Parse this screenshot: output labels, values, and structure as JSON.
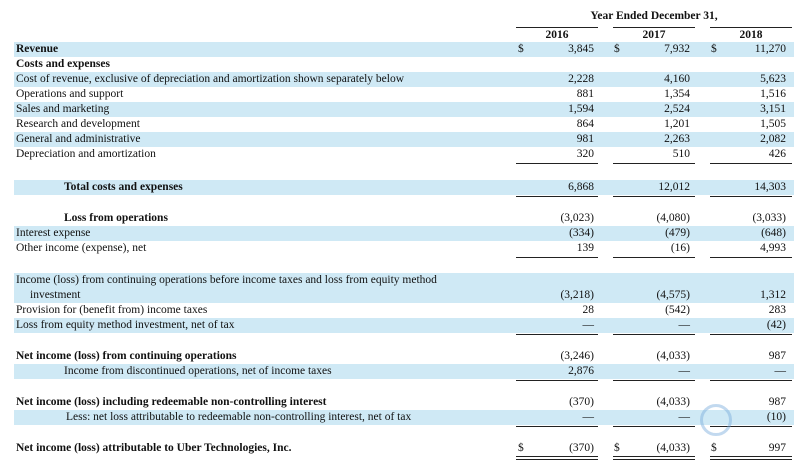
{
  "header": {
    "title": "Year Ended December 31,",
    "years": [
      "2016",
      "2017",
      "2018"
    ]
  },
  "currency_symbol": "$",
  "rows": {
    "revenue": {
      "label": "Revenue",
      "v": [
        "3,845",
        "7,932",
        "11,270"
      ]
    },
    "costs_header": {
      "label": "Costs and expenses"
    },
    "cost_of_revenue": {
      "label": "Cost of revenue, exclusive of depreciation and amortization shown separately below",
      "v": [
        "2,228",
        "4,160",
        "5,623"
      ]
    },
    "operations": {
      "label": "Operations and support",
      "v": [
        "881",
        "1,354",
        "1,516"
      ]
    },
    "sales": {
      "label": "Sales and marketing",
      "v": [
        "1,594",
        "2,524",
        "3,151"
      ]
    },
    "research": {
      "label": "Research and development",
      "v": [
        "864",
        "1,201",
        "1,505"
      ]
    },
    "general": {
      "label": "General and administrative",
      "v": [
        "981",
        "2,263",
        "2,082"
      ]
    },
    "depreciation": {
      "label": "Depreciation and amortization",
      "v": [
        "320",
        "510",
        "426"
      ]
    },
    "total_costs": {
      "label": "Total costs and expenses",
      "v": [
        "6,868",
        "12,012",
        "14,303"
      ]
    },
    "loss_ops": {
      "label": "Loss from operations",
      "v": [
        "(3,023)",
        "(4,080)",
        "(3,033)"
      ]
    },
    "interest": {
      "label": "Interest expense",
      "v": [
        "(334)",
        "(479)",
        "(648)"
      ]
    },
    "other_income": {
      "label": "Other income (expense), net",
      "v": [
        "139",
        "(16)",
        "4,993"
      ]
    },
    "income_before_tax": {
      "label_line1": "Income (loss) from continuing operations before income taxes and loss from equity method",
      "label_line2": "investment",
      "v": [
        "(3,218)",
        "(4,575)",
        "1,312"
      ]
    },
    "provision": {
      "label": "Provision for (benefit from) income taxes",
      "v": [
        "28",
        "(542)",
        "283"
      ]
    },
    "equity_loss": {
      "label": "Loss from equity method investment, net of tax",
      "v": [
        "—",
        "—",
        "(42)"
      ]
    },
    "net_cont": {
      "label": "Net income (loss) from continuing operations",
      "v": [
        "(3,246)",
        "(4,033)",
        "987"
      ]
    },
    "discontinued": {
      "label": "Income from discontinued operations, net of income taxes",
      "v": [
        "2,876",
        "—",
        "—"
      ]
    },
    "net_incl_nci": {
      "label": "Net income (loss) including redeemable non-controlling interest",
      "v": [
        "(370)",
        "(4,033)",
        "987"
      ]
    },
    "less_nci": {
      "label": "Less: net loss attributable to redeemable non-controlling interest, net of tax",
      "v": [
        "—",
        "—",
        "(10)"
      ]
    },
    "net_uber": {
      "label": "Net income (loss) attributable to Uber Technologies, Inc.",
      "v": [
        "(370)",
        "(4,033)",
        "997"
      ]
    }
  }
}
